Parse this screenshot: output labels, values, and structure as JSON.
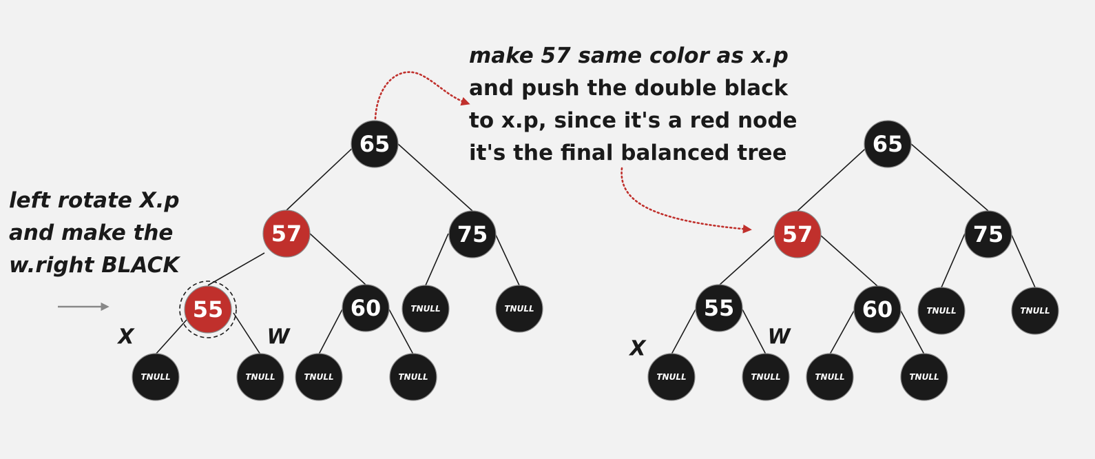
{
  "notes": {
    "left": [
      "left rotate X.p",
      "and make the",
      "w.right BLACK"
    ],
    "top": [
      "make 57 same color as x.p",
      "and push the double black",
      "to x.p, since it's a red node",
      "it's the final balanced tree"
    ]
  },
  "colors": {
    "black_node": "#1a1a1a",
    "red_node": "#c0302c",
    "arrow_red": "#c0302c",
    "arrow_gray": "#888888"
  },
  "trees": {
    "before": {
      "nodes": [
        {
          "id": "b65",
          "label": "65",
          "color": "black"
        },
        {
          "id": "b57",
          "label": "57",
          "color": "red"
        },
        {
          "id": "b75",
          "label": "75",
          "color": "black"
        },
        {
          "id": "b55",
          "label": "55",
          "color": "red",
          "highlighted": true
        },
        {
          "id": "b60",
          "label": "60",
          "color": "black"
        },
        {
          "id": "b75l",
          "label": "TNULL",
          "color": "black"
        },
        {
          "id": "b75r",
          "label": "TNULL",
          "color": "black"
        },
        {
          "id": "b55l",
          "label": "TNULL",
          "color": "black"
        },
        {
          "id": "b55r",
          "label": "TNULL",
          "color": "black"
        },
        {
          "id": "b60l",
          "label": "TNULL",
          "color": "black"
        },
        {
          "id": "b60r",
          "label": "TNULL",
          "color": "black"
        }
      ],
      "tags": {
        "x": "X",
        "w": "W"
      }
    },
    "after": {
      "nodes": [
        {
          "id": "a65",
          "label": "65",
          "color": "black"
        },
        {
          "id": "a57",
          "label": "57",
          "color": "red"
        },
        {
          "id": "a75",
          "label": "75",
          "color": "black"
        },
        {
          "id": "a55",
          "label": "55",
          "color": "black"
        },
        {
          "id": "a60",
          "label": "60",
          "color": "black"
        },
        {
          "id": "a75l",
          "label": "TNULL",
          "color": "black"
        },
        {
          "id": "a75r",
          "label": "TNULL",
          "color": "black"
        },
        {
          "id": "a55l",
          "label": "TNULL",
          "color": "black"
        },
        {
          "id": "a55r",
          "label": "TNULL",
          "color": "black"
        },
        {
          "id": "a60l",
          "label": "TNULL",
          "color": "black"
        },
        {
          "id": "a60r",
          "label": "TNULL",
          "color": "black"
        }
      ],
      "tags": {
        "x": "X",
        "w": "W"
      }
    }
  }
}
